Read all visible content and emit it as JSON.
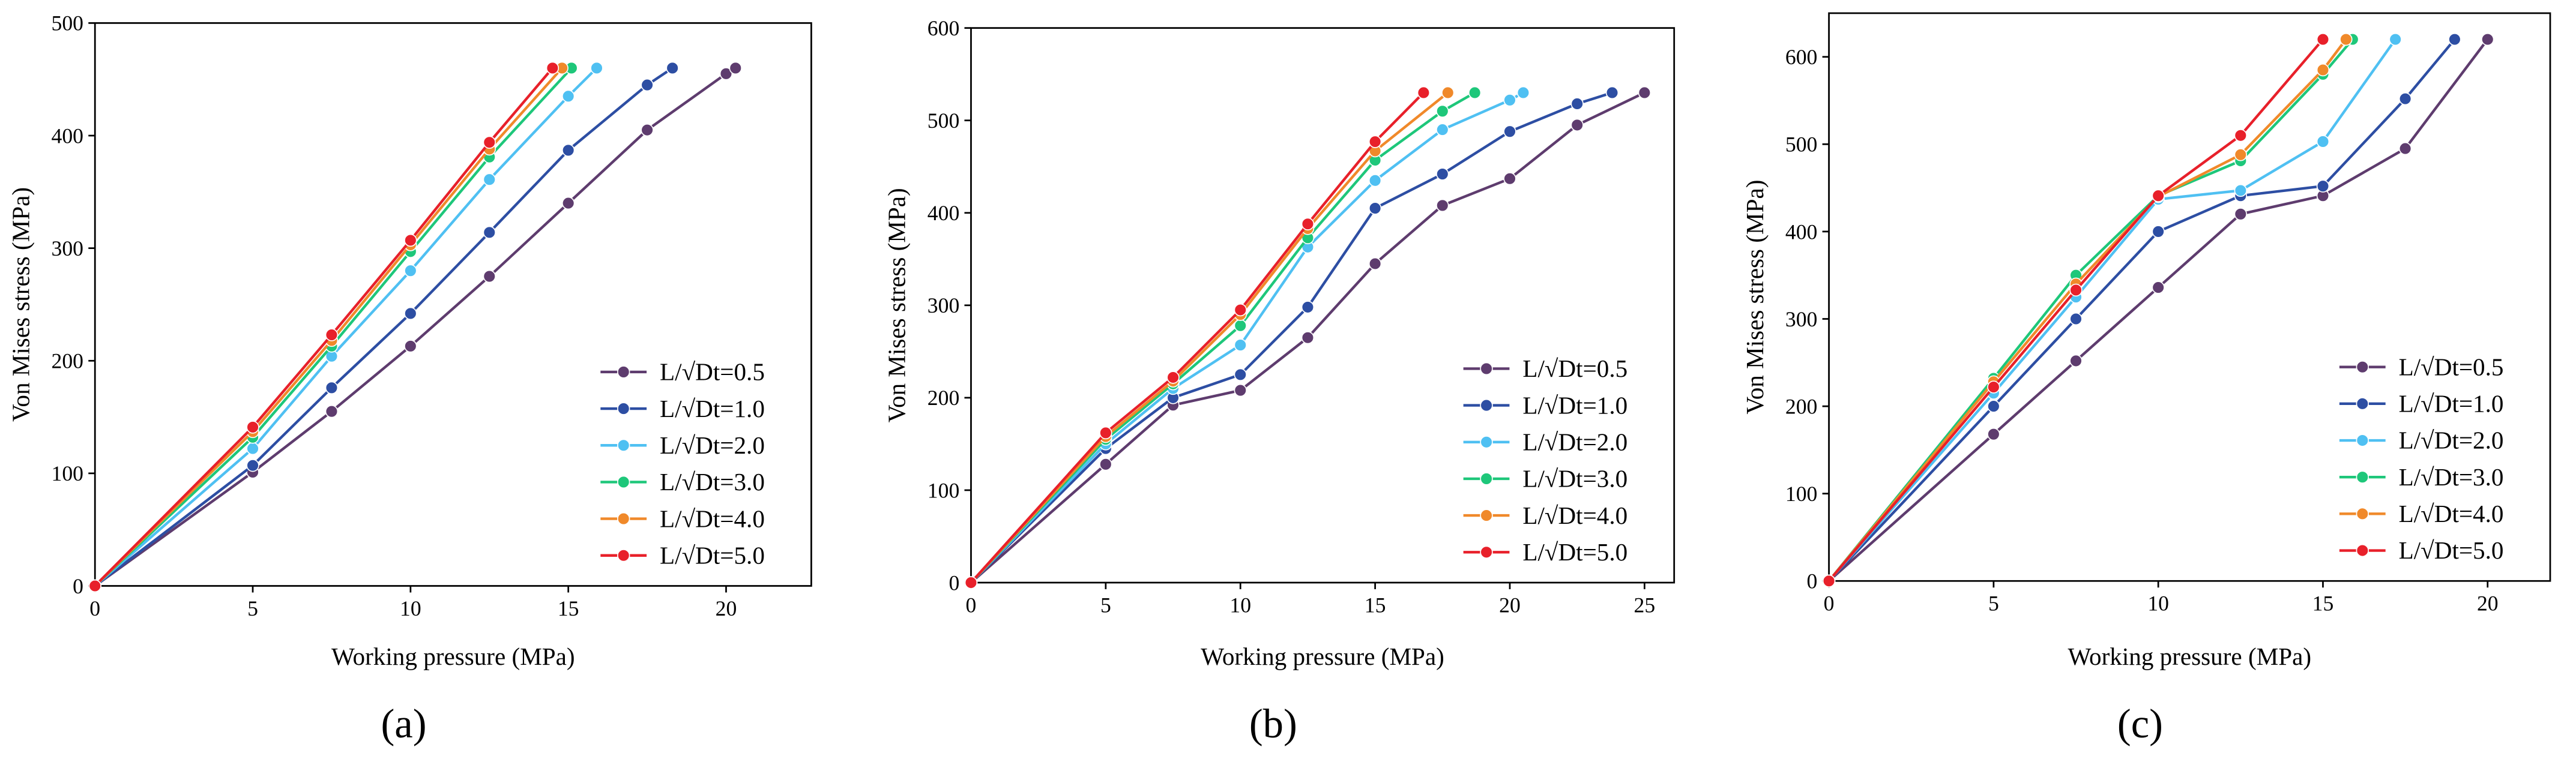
{
  "chart_data": [
    {
      "type": "line",
      "label": "(a)",
      "x_label": "Working pressure (MPa)",
      "y_label": "Von Mises stress (MPa)",
      "xlim": [
        0,
        22.7
      ],
      "xticks": [
        0,
        5,
        10,
        15,
        20
      ],
      "ylim": [
        0,
        500
      ],
      "yticks": [
        0,
        100,
        200,
        300,
        400,
        500
      ],
      "legend": "lower right",
      "series": [
        {
          "name": "L/√Dt=0.5",
          "color": "#5e3c6e",
          "x": [
            0,
            5,
            7.5,
            10,
            12.5,
            15,
            17.5,
            20,
            20.3
          ],
          "values": [
            0,
            101,
            155,
            213,
            275,
            340,
            405,
            455,
            460
          ]
        },
        {
          "name": "L/√Dt=1.0",
          "color": "#2d4ea3",
          "x": [
            0,
            5,
            7.5,
            10,
            12.5,
            15,
            17.5,
            18.3
          ],
          "values": [
            0,
            107,
            176,
            242,
            314,
            387,
            445,
            460
          ]
        },
        {
          "name": "L/√Dt=2.0",
          "color": "#4fc0f2",
          "x": [
            0,
            5,
            7.5,
            10,
            12.5,
            15,
            15.9
          ],
          "values": [
            0,
            122,
            204,
            280,
            361,
            435,
            460
          ]
        },
        {
          "name": "L/√Dt=3.0",
          "color": "#1ec77a",
          "x": [
            0,
            5,
            7.5,
            10,
            12.5,
            15.1
          ],
          "values": [
            0,
            132,
            213,
            297,
            381,
            460
          ]
        },
        {
          "name": "L/√Dt=4.0",
          "color": "#f0892a",
          "x": [
            0,
            5,
            7.5,
            10,
            12.5,
            14.8
          ],
          "values": [
            0,
            137,
            218,
            303,
            388,
            460
          ]
        },
        {
          "name": "L/√Dt=5.0",
          "color": "#e8202a",
          "x": [
            0,
            5,
            7.5,
            10,
            12.5,
            14.5
          ],
          "values": [
            0,
            141,
            223,
            307,
            394,
            460
          ]
        }
      ]
    },
    {
      "type": "line",
      "label": "(b)",
      "x_label": "Working pressure (MPa)",
      "y_label": "Von Mises stress (MPa)",
      "xlim": [
        0,
        26.1
      ],
      "xticks": [
        0,
        5,
        10,
        15,
        20,
        25
      ],
      "ylim": [
        0,
        600
      ],
      "yticks": [
        0,
        100,
        200,
        300,
        400,
        500,
        600
      ],
      "legend": "lower right",
      "series": [
        {
          "name": "L/√Dt=0.5",
          "color": "#5e3c6e",
          "x": [
            0,
            5,
            7.5,
            10,
            12.5,
            15,
            17.5,
            20,
            22.5,
            25
          ],
          "values": [
            0,
            128,
            192,
            208,
            265,
            345,
            408,
            437,
            495,
            530
          ]
        },
        {
          "name": "L/√Dt=1.0",
          "color": "#2d4ea3",
          "x": [
            0,
            5,
            7.5,
            10,
            12.5,
            15,
            17.5,
            20,
            22.5,
            23.8
          ],
          "values": [
            0,
            145,
            200,
            225,
            298,
            405,
            442,
            488,
            518,
            530
          ]
        },
        {
          "name": "L/√Dt=2.0",
          "color": "#4fc0f2",
          "x": [
            0,
            5,
            7.5,
            10,
            12.5,
            15,
            17.5,
            20,
            20.5
          ],
          "values": [
            0,
            150,
            210,
            257,
            363,
            435,
            490,
            522,
            530
          ]
        },
        {
          "name": "L/√Dt=3.0",
          "color": "#1ec77a",
          "x": [
            0,
            5,
            7.5,
            10,
            12.5,
            15,
            17.5,
            18.7
          ],
          "values": [
            0,
            155,
            215,
            278,
            373,
            457,
            510,
            530
          ]
        },
        {
          "name": "L/√Dt=4.0",
          "color": "#f0892a",
          "x": [
            0,
            5,
            7.5,
            10,
            12.5,
            15,
            17.7
          ],
          "values": [
            0,
            158,
            218,
            290,
            383,
            467,
            530
          ]
        },
        {
          "name": "L/√Dt=5.0",
          "color": "#e8202a",
          "x": [
            0,
            5,
            7.5,
            10,
            12.5,
            15,
            16.8
          ],
          "values": [
            0,
            162,
            222,
            295,
            388,
            477,
            530
          ]
        }
      ]
    },
    {
      "type": "line",
      "label": "(c)",
      "x_label": "Working pressure (MPa)",
      "y_label": "Von Mises stress (MPa)",
      "xlim": [
        0,
        21.9
      ],
      "xticks": [
        0,
        5,
        10,
        15,
        20
      ],
      "ylim": [
        0,
        650
      ],
      "yticks": [
        0,
        100,
        200,
        300,
        400,
        500,
        600
      ],
      "legend": "lower right",
      "series": [
        {
          "name": "L/√Dt=0.5",
          "color": "#5e3c6e",
          "x": [
            0,
            5,
            7.5,
            10,
            12.5,
            15,
            17.5,
            20
          ],
          "values": [
            0,
            168,
            252,
            336,
            420,
            441,
            495,
            620
          ]
        },
        {
          "name": "L/√Dt=1.0",
          "color": "#2d4ea3",
          "x": [
            0,
            5,
            7.5,
            10,
            12.5,
            15,
            17.5,
            19
          ],
          "values": [
            0,
            200,
            300,
            400,
            441,
            452,
            552,
            620
          ]
        },
        {
          "name": "L/√Dt=2.0",
          "color": "#4fc0f2",
          "x": [
            0,
            5,
            7.5,
            10,
            12.5,
            15,
            17.2
          ],
          "values": [
            0,
            215,
            325,
            437,
            447,
            503,
            620
          ]
        },
        {
          "name": "L/√Dt=3.0",
          "color": "#1ec77a",
          "x": [
            0,
            5,
            7.5,
            10,
            12.5,
            15,
            15.9
          ],
          "values": [
            0,
            232,
            350,
            441,
            481,
            580,
            620
          ]
        },
        {
          "name": "L/√Dt=4.0",
          "color": "#f0892a",
          "x": [
            0,
            5,
            7.5,
            10,
            12.5,
            15,
            15.7
          ],
          "values": [
            0,
            228,
            340,
            440,
            488,
            585,
            620
          ]
        },
        {
          "name": "L/√Dt=5.0",
          "color": "#e8202a",
          "x": [
            0,
            5,
            7.5,
            10,
            12.5,
            15
          ],
          "values": [
            0,
            222,
            333,
            441,
            510,
            620
          ]
        }
      ]
    }
  ]
}
